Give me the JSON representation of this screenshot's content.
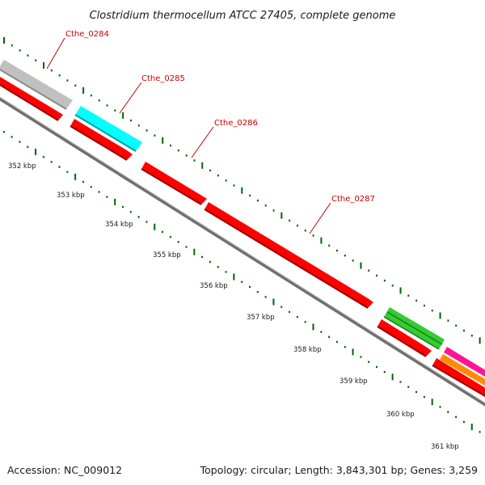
{
  "title": "Clostridium thermocellum ATCC 27405, complete genome",
  "footer": {
    "accession": "Accession: NC_009012",
    "summary": "Topology: circular; Length: 3,843,301 bp; Genes: 3,259"
  },
  "colors": {
    "backbone": "#808080",
    "tick": "#006400",
    "label": "#cc0000",
    "gene_red": "#ff0000",
    "gene_gray": "#bfbfbf",
    "gene_cyan": "#00ffff",
    "gene_green": "#33cc33",
    "gene_magenta": "#ff1493",
    "gene_orange": "#ff8c00"
  },
  "genes": [
    {
      "locus": "Cthe_0284",
      "color": "gene_gray"
    },
    {
      "locus": "Cthe_0285",
      "color": "gene_cyan"
    },
    {
      "locus": "Cthe_0286",
      "color": "gene_red"
    },
    {
      "locus": "Cthe_0287",
      "color": "gene_red"
    }
  ],
  "position_labels": [
    "352 kbp",
    "353 kbp",
    "354 kbp",
    "355 kbp",
    "356 kbp",
    "357 kbp",
    "358 kbp",
    "359 kbp",
    "360 kbp",
    "361 kbp"
  ]
}
